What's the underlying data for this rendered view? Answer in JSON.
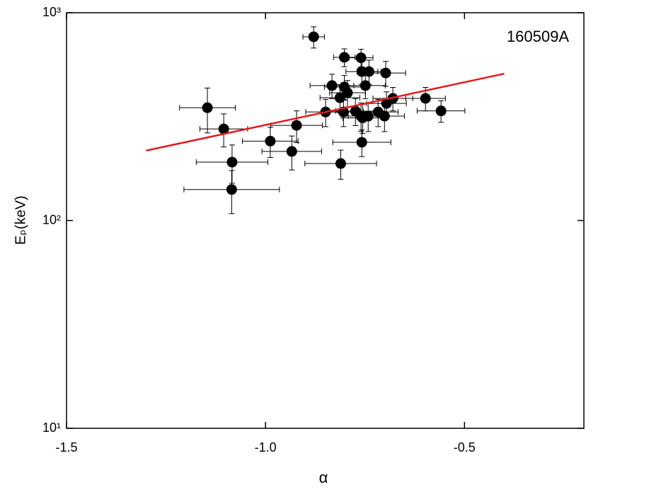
{
  "chart_data": {
    "type": "scatter",
    "x_label": "α",
    "y_label": "Eₚ(keV)",
    "annotation": "160509A",
    "x": [
      -0.879,
      -0.802,
      -0.76,
      -0.758,
      -0.74,
      -0.698,
      -0.833,
      -0.802,
      -0.749,
      -0.794,
      -0.813,
      -0.598,
      -0.68,
      -0.696,
      -1.146,
      -0.849,
      -0.804,
      -0.774,
      -0.559,
      -0.717,
      -0.76,
      -0.742,
      -0.701,
      -0.756,
      -1.105,
      -0.922,
      -0.988,
      -0.758,
      -0.934,
      -1.084,
      -0.811,
      -1.085
    ],
    "y": [
      766,
      610,
      607,
      521,
      521,
      513,
      446,
      439,
      446,
      412,
      390,
      387,
      387,
      366,
      349,
      333,
      333,
      336,
      337,
      333,
      318,
      318,
      318,
      312,
      276,
      287,
      241,
      238,
      215,
      191,
      188,
      141
    ],
    "xerr": [
      0.027,
      0.027,
      0.03,
      0.04,
      0.03,
      0.05,
      0.055,
      0.05,
      0.05,
      0.045,
      0.05,
      0.05,
      0.05,
      0.05,
      0.07,
      0.05,
      0.05,
      0.05,
      0.06,
      0.05,
      0.05,
      0.05,
      0.05,
      0.05,
      0.06,
      0.065,
      0.07,
      0.073,
      0.075,
      0.09,
      0.09,
      0.12
    ],
    "yerr": [
      90,
      60,
      60,
      70,
      70,
      70,
      60,
      60,
      60,
      60,
      60,
      50,
      50,
      50,
      85,
      50,
      50,
      50,
      40,
      50,
      50,
      50,
      50,
      50,
      50,
      50,
      40,
      35,
      40,
      40,
      30,
      33
    ],
    "color": "#000000",
    "fit": {
      "color": "#e41a1c",
      "x": [
        -1.3,
        -0.4
      ],
      "y": [
        217,
        509
      ]
    },
    "xlim": [
      -1.5,
      -0.2
    ],
    "ylim": [
      10,
      1000
    ],
    "log_y": true,
    "xticks": [
      -1.5,
      {
        "value": -1,
        "label": "-1.0"
      },
      -0.5
    ],
    "yticks": [
      {
        "value": 10,
        "label": "10¹"
      },
      {
        "value": 100,
        "label": "10²"
      },
      {
        "value": 1000,
        "label": "10³"
      }
    ]
  }
}
